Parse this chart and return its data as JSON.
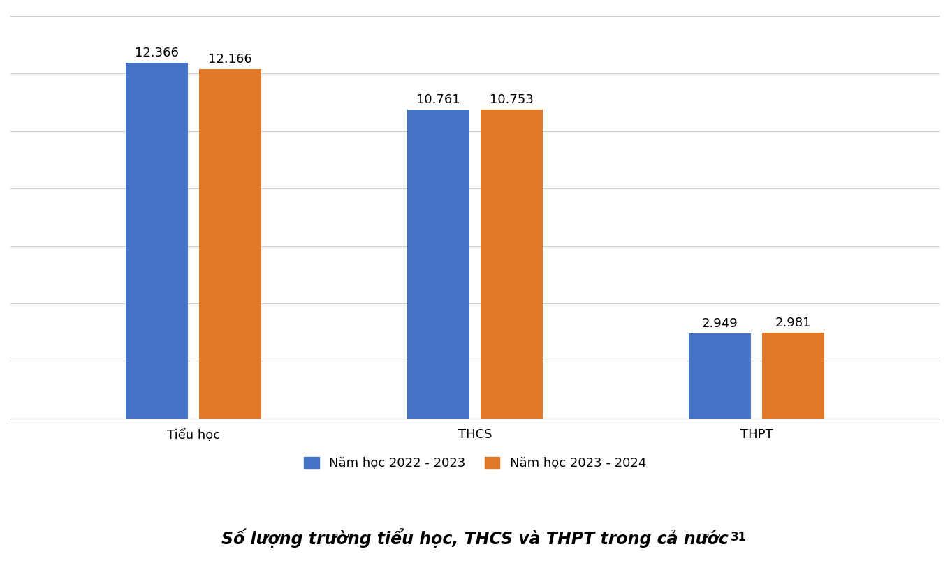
{
  "categories": [
    "Tiểu học",
    "THCS",
    "THPT"
  ],
  "series": [
    {
      "label": "Năm học 2022 - 2023",
      "values": [
        12366,
        10761,
        2949
      ],
      "color": "#4472C4"
    },
    {
      "label": "Năm học 2023 - 2024",
      "values": [
        12166,
        10753,
        2981
      ],
      "color": "#E07828"
    }
  ],
  "bar_labels": [
    [
      "12.366",
      "10.761",
      "2.949"
    ],
    [
      "12.166",
      "10.753",
      "2.981"
    ]
  ],
  "ylim": [
    0,
    14000
  ],
  "title": "Số lượng trường tiểu học, THCS và THPT trong cả nước",
  "title_superscript": "31",
  "background_color": "#FFFFFF",
  "grid_color": "#CCCCCC",
  "bar_width": 0.22,
  "bar_gap": 0.04,
  "label_fontsize": 13,
  "tick_fontsize": 13,
  "legend_fontsize": 13,
  "title_fontsize": 17,
  "yticks_grid": [
    0,
    2000,
    4000,
    6000,
    8000,
    10000,
    12000,
    14000
  ]
}
